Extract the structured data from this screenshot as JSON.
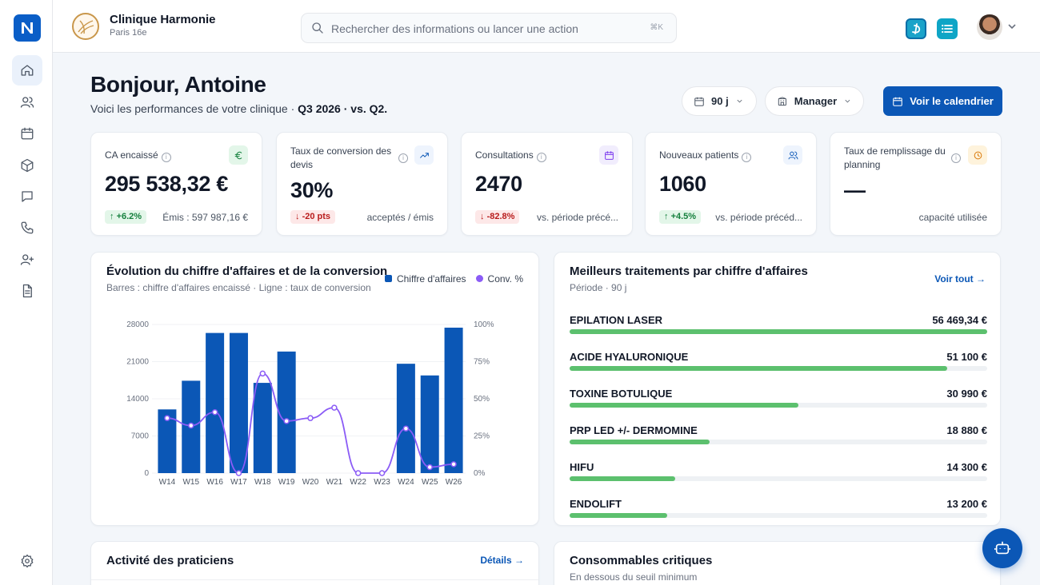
{
  "topbar": {
    "clinic_name": "Clinique Harmonie",
    "clinic_location": "Paris 16e",
    "search_placeholder": "Rechercher des informations ou lancer une action",
    "search_shortcut": "⌘K",
    "doctolib_icon": "doctolib-icon",
    "list_icon": "list-icon"
  },
  "header": {
    "greeting": "Bonjour,  Antoine",
    "subtitle_prefix": "Voici les performances de votre clinique · ",
    "subtitle_period": "Q3 2026 · vs. Q2.",
    "period_filter": "90 j",
    "role_filter": "Manager",
    "calendar_button": "Voir le calendrier"
  },
  "kpis": [
    {
      "label": "CA encaissé",
      "icon": "euro-icon",
      "value": "295 538,32 €",
      "badge": "+6.2%",
      "trend": "up",
      "foot": "Émis : 597 987,16 €"
    },
    {
      "label": "Taux de conversion des devis",
      "icon": "trend-up-icon",
      "value": "30%",
      "badge": "-20 pts",
      "trend": "down",
      "foot": "acceptés / émis"
    },
    {
      "label": "Consultations",
      "icon": "calendar-icon",
      "value": "2470",
      "badge": "-82.8%",
      "trend": "down",
      "foot": "vs. période précé..."
    },
    {
      "label": "Nouveaux patients",
      "icon": "users-icon",
      "value": "1060",
      "badge": "+4.5%",
      "trend": "up",
      "foot": "vs. période précéd..."
    },
    {
      "label": "Taux de remplissage du planning",
      "icon": "clock-icon",
      "value": "—",
      "badge": "",
      "trend": "",
      "foot": "capacité utilisée"
    }
  ],
  "chart": {
    "title": "Évolution du chiffre d'affaires et de la conversion",
    "subtitle": "Barres : chiffre d'affaires encaissé · Ligne : taux de conversion",
    "legend_bar": "Chiffre d'affaires",
    "legend_line": "Conv. %"
  },
  "chart_data": {
    "type": "bar",
    "categories": [
      "W14",
      "W15",
      "W16",
      "W17",
      "W18",
      "W19",
      "W20",
      "W21",
      "W22",
      "W23",
      "W24",
      "W25",
      "W26"
    ],
    "series": [
      {
        "name": "Chiffre d'affaires",
        "type": "bar",
        "axis": "left",
        "values": [
          12000,
          17400,
          26400,
          26400,
          17000,
          22900,
          0,
          0,
          0,
          0,
          20600,
          18400,
          27400
        ]
      },
      {
        "name": "Conv. %",
        "type": "line",
        "axis": "right",
        "values": [
          37,
          32,
          41,
          0,
          67,
          35,
          37,
          44,
          0,
          0,
          30,
          4,
          6
        ]
      }
    ],
    "y_left": {
      "ticks": [
        0,
        7000,
        14000,
        21000,
        28000
      ],
      "ylim": [
        0,
        28000
      ]
    },
    "y_right": {
      "ticks": [
        "0%",
        "25%",
        "50%",
        "75%",
        "100%"
      ],
      "ylim": [
        0,
        100
      ]
    },
    "colors": {
      "bar": "#0b57b6",
      "line": "#8b5cf6"
    },
    "grid": true
  },
  "treatments": {
    "title": "Meilleurs traitements par chiffre d'affaires",
    "subtitle": "Période · 90 j",
    "see_all": "Voir tout →",
    "items": [
      {
        "name": "EPILATION LASER",
        "value": "56 469,34 €",
        "amount": 56469.34
      },
      {
        "name": "ACIDE HYALURONIQUE",
        "value": "51 100 €",
        "amount": 51100
      },
      {
        "name": "TOXINE BOTULIQUE",
        "value": "30 990 €",
        "amount": 30990
      },
      {
        "name": "PRP LED +/- DERMOMINE",
        "value": "18 880 €",
        "amount": 18880
      },
      {
        "name": "HIFU",
        "value": "14 300 €",
        "amount": 14300
      },
      {
        "name": "ENDOLIFT",
        "value": "13 200 €",
        "amount": 13200
      }
    ]
  },
  "practitioners": {
    "title": "Activité des praticiens",
    "details": "Détails →"
  },
  "consumables": {
    "title": "Consommables critiques",
    "subtitle": "En dessous du seuil minimum"
  }
}
